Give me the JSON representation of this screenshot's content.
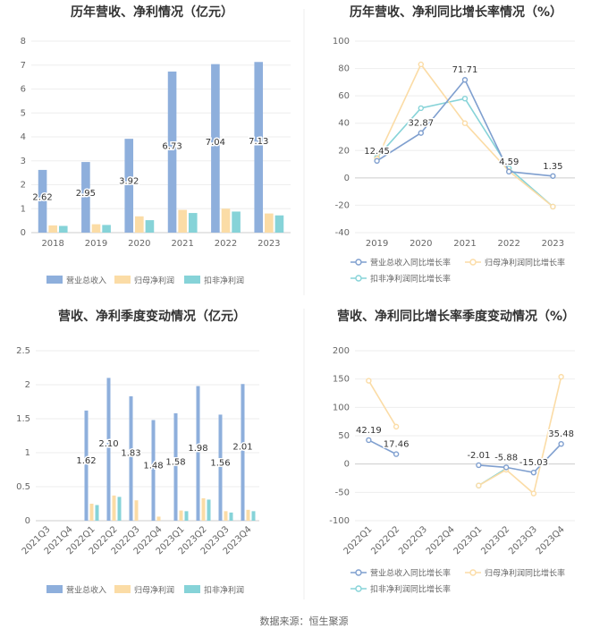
{
  "source": "数据来源：恒生聚源",
  "charts": [
    {
      "type": "bar",
      "title": "历年营收、净利情况（亿元）",
      "categories": [
        "2018",
        "2019",
        "2020",
        "2021",
        "2022",
        "2023"
      ],
      "ylim": [
        0,
        8
      ],
      "yticks": [
        "0",
        "1",
        "2",
        "3",
        "4",
        "5",
        "6",
        "7",
        "8"
      ],
      "series": [
        {
          "name": "营业总收入",
          "color": "#8eafdc",
          "values": [
            2.62,
            2.95,
            3.92,
            6.73,
            7.04,
            7.13
          ],
          "labels": [
            "2.62",
            "2.95",
            "3.92",
            "6.73",
            "7.04",
            "7.13"
          ]
        },
        {
          "name": "归母净利润",
          "color": "#fbdca6",
          "values": [
            0.3,
            0.35,
            0.68,
            0.95,
            1.0,
            0.8
          ]
        },
        {
          "name": "扣非净利润",
          "color": "#86d3d8",
          "values": [
            0.28,
            0.32,
            0.52,
            0.82,
            0.88,
            0.72
          ]
        }
      ]
    },
    {
      "type": "line",
      "title": "历年营收、净利同比增长率情况（%）",
      "categories": [
        "2019",
        "2020",
        "2021",
        "2022",
        "2023"
      ],
      "ylim": [
        -40,
        100
      ],
      "yticks": [
        "-40",
        "-20",
        "0",
        "20",
        "40",
        "60",
        "80",
        "100"
      ],
      "series": [
        {
          "name": "营业总收入同比增长率",
          "color": "#7f9fcf",
          "values": [
            12.45,
            32.87,
            71.71,
            4.59,
            1.35
          ],
          "labels": [
            "12.45",
            "32.87",
            "71.71",
            "4.59",
            "1.35"
          ]
        },
        {
          "name": "归母净利润同比增长率",
          "color": "#fbdca6",
          "values": [
            14,
            83,
            40,
            5,
            -21
          ]
        },
        {
          "name": "扣非净利润同比增长率",
          "color": "#86d3d8",
          "values": [
            15,
            51,
            58,
            7,
            -21
          ]
        }
      ]
    },
    {
      "type": "bar",
      "title": "营收、净利季度变动情况（亿元）",
      "categories": [
        "2021Q3",
        "2021Q4",
        "2022Q1",
        "2022Q2",
        "2022Q3",
        "2022Q4",
        "2023Q1",
        "2023Q2",
        "2023Q3",
        "2023Q4"
      ],
      "ylim": [
        0,
        2.5
      ],
      "yticks": [
        "0",
        "0.5",
        "1",
        "1.5",
        "2",
        "2.5"
      ],
      "series": [
        {
          "name": "营业总收入",
          "color": "#8eafdc",
          "values": [
            null,
            null,
            1.62,
            2.1,
            1.83,
            1.48,
            1.58,
            1.98,
            1.56,
            2.01
          ],
          "labels": [
            null,
            null,
            "1.62",
            "2.10",
            "1.83",
            "1.48",
            "1.58",
            "1.98",
            "1.56",
            "2.01"
          ]
        },
        {
          "name": "归母净利润",
          "color": "#fbdca6",
          "values": [
            null,
            null,
            0.25,
            0.37,
            0.3,
            0.06,
            0.15,
            0.33,
            0.14,
            0.16
          ]
        },
        {
          "name": "扣非净利润",
          "color": "#86d3d8",
          "values": [
            null,
            null,
            0.23,
            0.35,
            null,
            null,
            0.14,
            0.31,
            0.12,
            0.14
          ]
        }
      ]
    },
    {
      "type": "line",
      "title": "营收、净利同比增长率季度变动情况（%）",
      "categories": [
        "2022Q1",
        "2022Q2",
        "2022Q3",
        "2022Q4",
        "2023Q1",
        "2023Q2",
        "2023Q3",
        "2023Q4"
      ],
      "ylim": [
        -100,
        200
      ],
      "yticks": [
        "-100",
        "-50",
        "0",
        "50",
        "100",
        "150",
        "200"
      ],
      "series": [
        {
          "name": "营业总收入同比增长率",
          "color": "#7f9fcf",
          "values": [
            42.19,
            17.46,
            null,
            null,
            -2.01,
            -5.88,
            -15.03,
            35.48
          ],
          "labels": [
            "42.19",
            "17.46",
            null,
            null,
            "-2.01",
            "-5.88",
            "-15.03",
            "35.48"
          ]
        },
        {
          "name": "归母净利润同比增长率",
          "color": "#fbdca6",
          "values": [
            147,
            66,
            null,
            null,
            -38,
            -10,
            -52,
            154
          ]
        },
        {
          "name": "扣非净利润同比增长率",
          "color": "#86d3d8",
          "values": [
            null,
            null,
            null,
            null,
            -38,
            -8,
            null,
            null
          ]
        }
      ]
    }
  ]
}
